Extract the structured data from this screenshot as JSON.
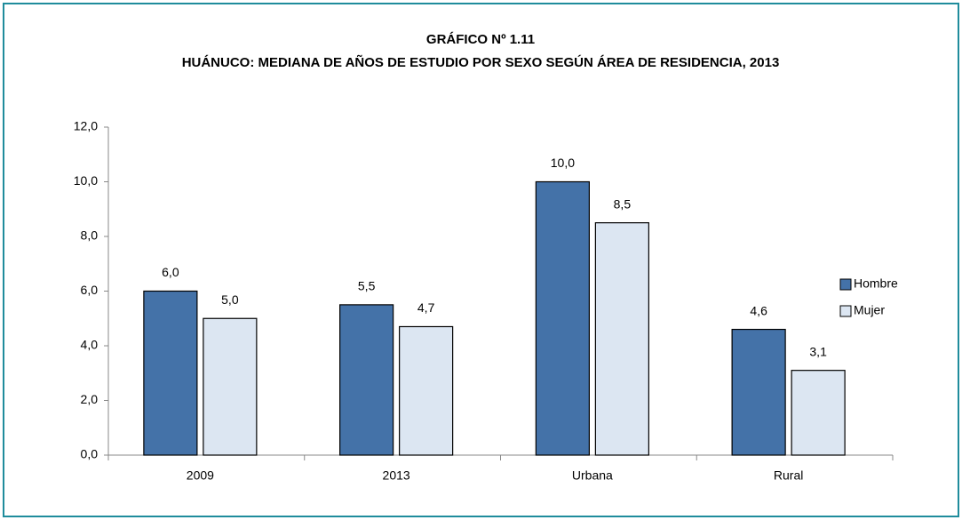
{
  "chart_data": {
    "type": "bar",
    "title": "GRÁFICO Nº 1.11",
    "subtitle": "HUÁNUCO: MEDIANA DE AÑOS DE ESTUDIO POR SEXO SEGÚN ÁREA DE RESIDENCIA, 2013",
    "categories": [
      "2009",
      "2013",
      "Urbana",
      "Rural"
    ],
    "series": [
      {
        "name": "Hombre",
        "color": "#4472a8",
        "values": [
          6.0,
          5.5,
          10.0,
          4.6
        ],
        "value_labels": [
          "6,0",
          "5,5",
          "10,0",
          "4,6"
        ]
      },
      {
        "name": "Mujer",
        "color": "#dce6f2",
        "values": [
          5.0,
          4.7,
          8.5,
          3.1
        ],
        "value_labels": [
          "5,0",
          "4,7",
          "8,5",
          "3,1"
        ]
      }
    ],
    "ylim": [
      0,
      12
    ],
    "yticks": [
      {
        "value": 0,
        "label": "0,0"
      },
      {
        "value": 2,
        "label": "2,0"
      },
      {
        "value": 4,
        "label": "4,0"
      },
      {
        "value": 6,
        "label": "6,0"
      },
      {
        "value": 8,
        "label": "8,0"
      },
      {
        "value": 10,
        "label": "10,0"
      },
      {
        "value": 12,
        "label": "12,0"
      }
    ],
    "legend": "right"
  }
}
